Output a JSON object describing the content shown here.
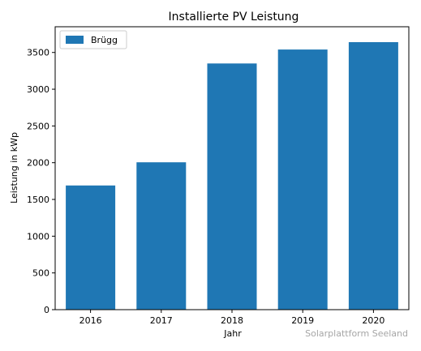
{
  "chart_data": {
    "type": "bar",
    "title": "Installierte PV Leistung",
    "xlabel": "Jahr",
    "ylabel": "Leistung in kWp",
    "categories": [
      "2016",
      "2017",
      "2018",
      "2019",
      "2020"
    ],
    "series": [
      {
        "name": "Brügg",
        "values": [
          1690,
          2005,
          3350,
          3540,
          3640
        ]
      }
    ],
    "ylim": [
      0,
      3850
    ],
    "yticks": [
      0,
      500,
      1000,
      1500,
      2000,
      2500,
      3000,
      3500
    ],
    "bar_color": "#1f77b4",
    "grid": false,
    "legend_position": "top-left"
  },
  "watermark": "Solarplattform Seeland"
}
